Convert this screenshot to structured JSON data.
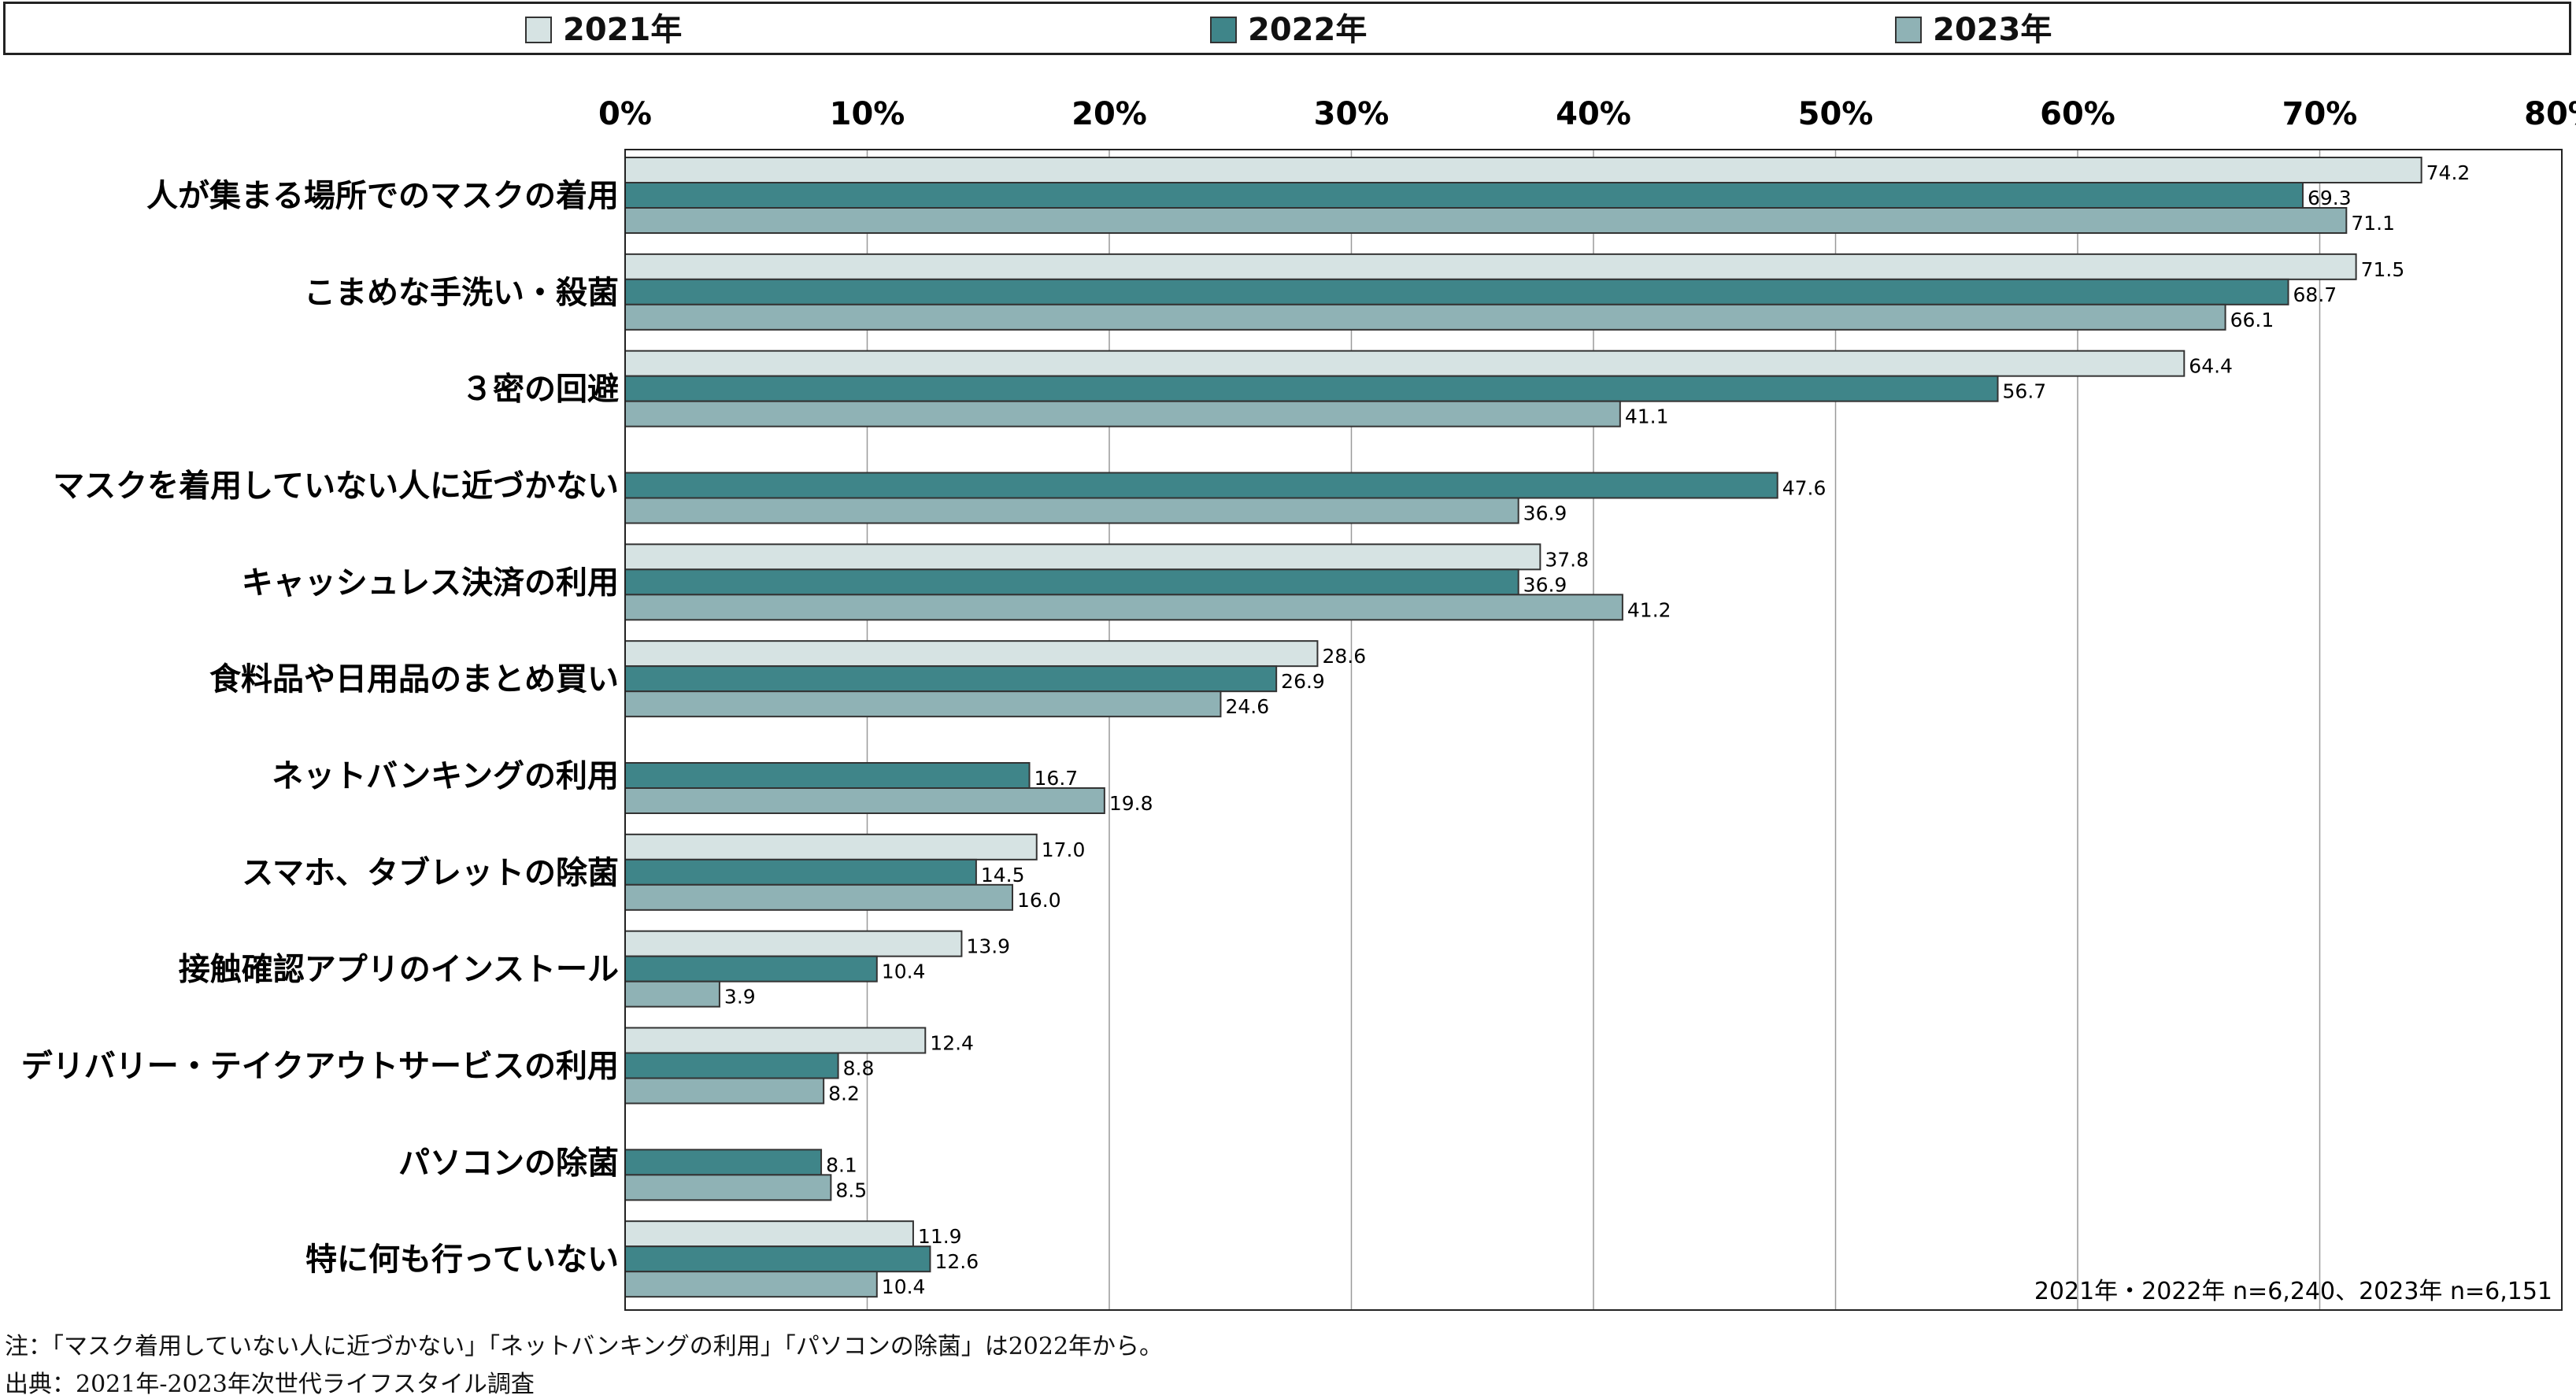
{
  "chart_data": {
    "type": "bar",
    "orientation": "horizontal",
    "categories": [
      "人が集まる場所でのマスクの着用",
      "こまめな手洗い・殺菌",
      "３密の回避",
      "マスクを着用していない人に近づかない",
      "キャッシュレス決済の利用",
      "食料品や日用品のまとめ買い",
      "ネットバンキングの利用",
      "スマホ、タブレットの除菌",
      "接触確認アプリのインストール",
      "デリバリー・テイクアウトサービスの利用",
      "パソコンの除菌",
      "特に何も行っていない"
    ],
    "series": [
      {
        "name": "2021年",
        "color": "#d6e3e3",
        "values": [
          74.2,
          71.5,
          64.4,
          null,
          37.8,
          28.6,
          null,
          17.0,
          13.9,
          12.4,
          null,
          11.9
        ]
      },
      {
        "name": "2022年",
        "color": "#3f8589",
        "values": [
          69.3,
          68.7,
          56.7,
          47.6,
          36.9,
          26.9,
          16.7,
          14.5,
          10.4,
          8.8,
          8.1,
          12.6
        ]
      },
      {
        "name": "2023年",
        "color": "#8fb2b5",
        "values": [
          71.1,
          66.1,
          41.1,
          36.9,
          41.2,
          24.6,
          19.8,
          16.0,
          3.9,
          8.2,
          8.5,
          10.4
        ]
      }
    ],
    "xlim": [
      0,
      80
    ],
    "xticks": [
      0,
      10,
      20,
      30,
      40,
      50,
      60,
      70,
      80
    ],
    "tick_suffix": "%",
    "grid": true,
    "legend_position": "top"
  },
  "sample_note": "2021年・2022年 n=6,240、2023年 n=6,151",
  "footnote": "注：「マスク着用していない人に近づかない」「ネットバンキングの利用」「パソコンの除菌」は2022年から。",
  "source": "出典：2021年-2023年次世代ライフスタイル調査"
}
